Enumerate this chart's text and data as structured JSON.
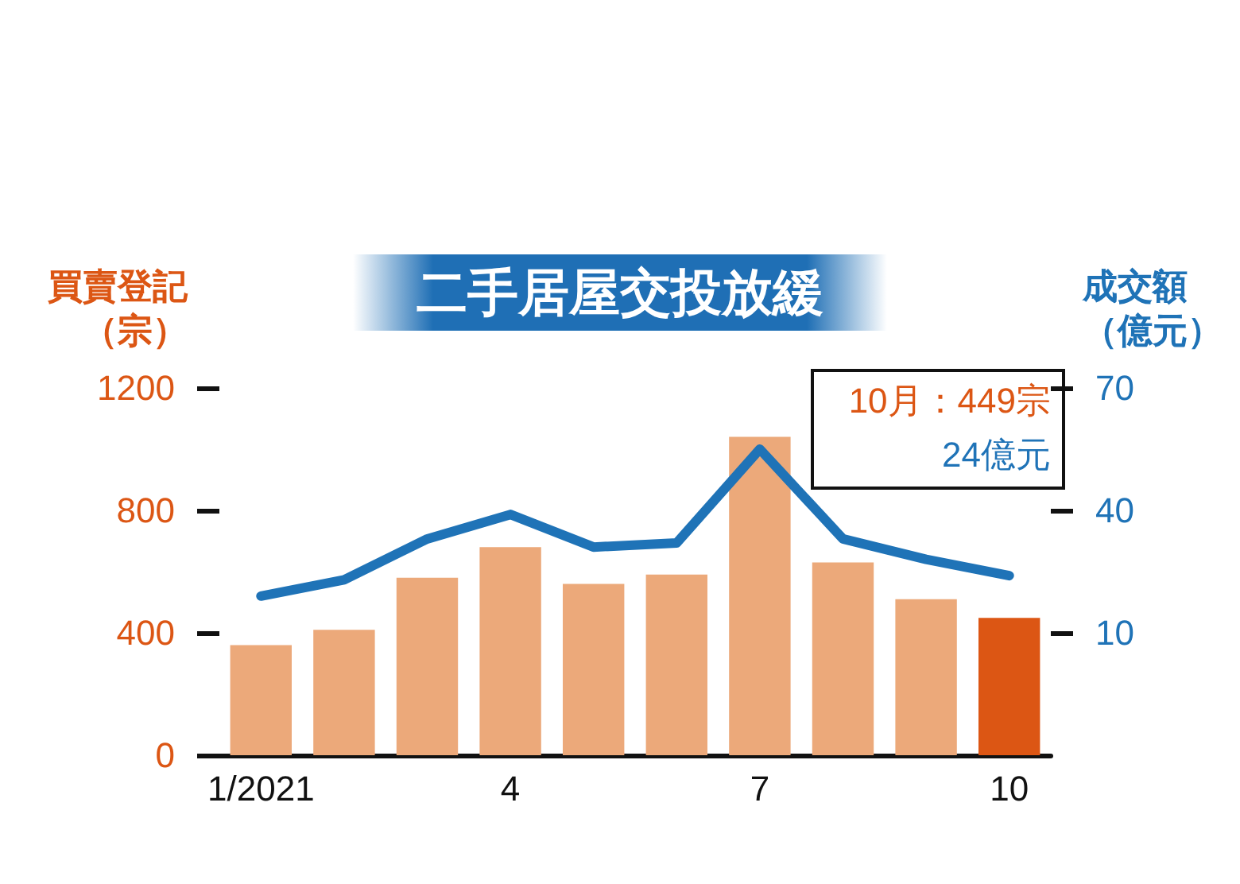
{
  "chart_data": {
    "type": "bar",
    "title": "二手居屋交投放緩",
    "ylabel": "買賣登記（宗）",
    "y2label": "成交額（億元）",
    "categories": [
      "1/2021",
      null,
      null,
      "4",
      null,
      null,
      "7",
      null,
      null,
      "10"
    ],
    "series": [
      {
        "colors": [
          "#eca97a",
          "#eca97a",
          "#eca97a",
          "#eca97a",
          "#eca97a",
          "#eca97a",
          "#eca97a",
          "#eca97a",
          "#eca97a",
          "#dc5614"
        ],
        "values": [
          360,
          410,
          580,
          680,
          560,
          590,
          1040,
          630,
          510,
          449
        ]
      },
      {
        "type": "line",
        "axis": "y2",
        "color": "#1f73b7",
        "values": [
          19,
          23,
          33,
          39,
          31,
          32,
          55,
          33,
          28,
          24
        ]
      }
    ],
    "ylim": [
      0,
      1200
    ],
    "yticks": [
      0,
      400,
      800,
      1200
    ],
    "y2lim": [
      -20,
      70
    ],
    "y2ticks": [
      10,
      40,
      70
    ],
    "annotations": [
      "10月：449宗",
      "24億元"
    ],
    "grid": false,
    "marker": "none"
  }
}
